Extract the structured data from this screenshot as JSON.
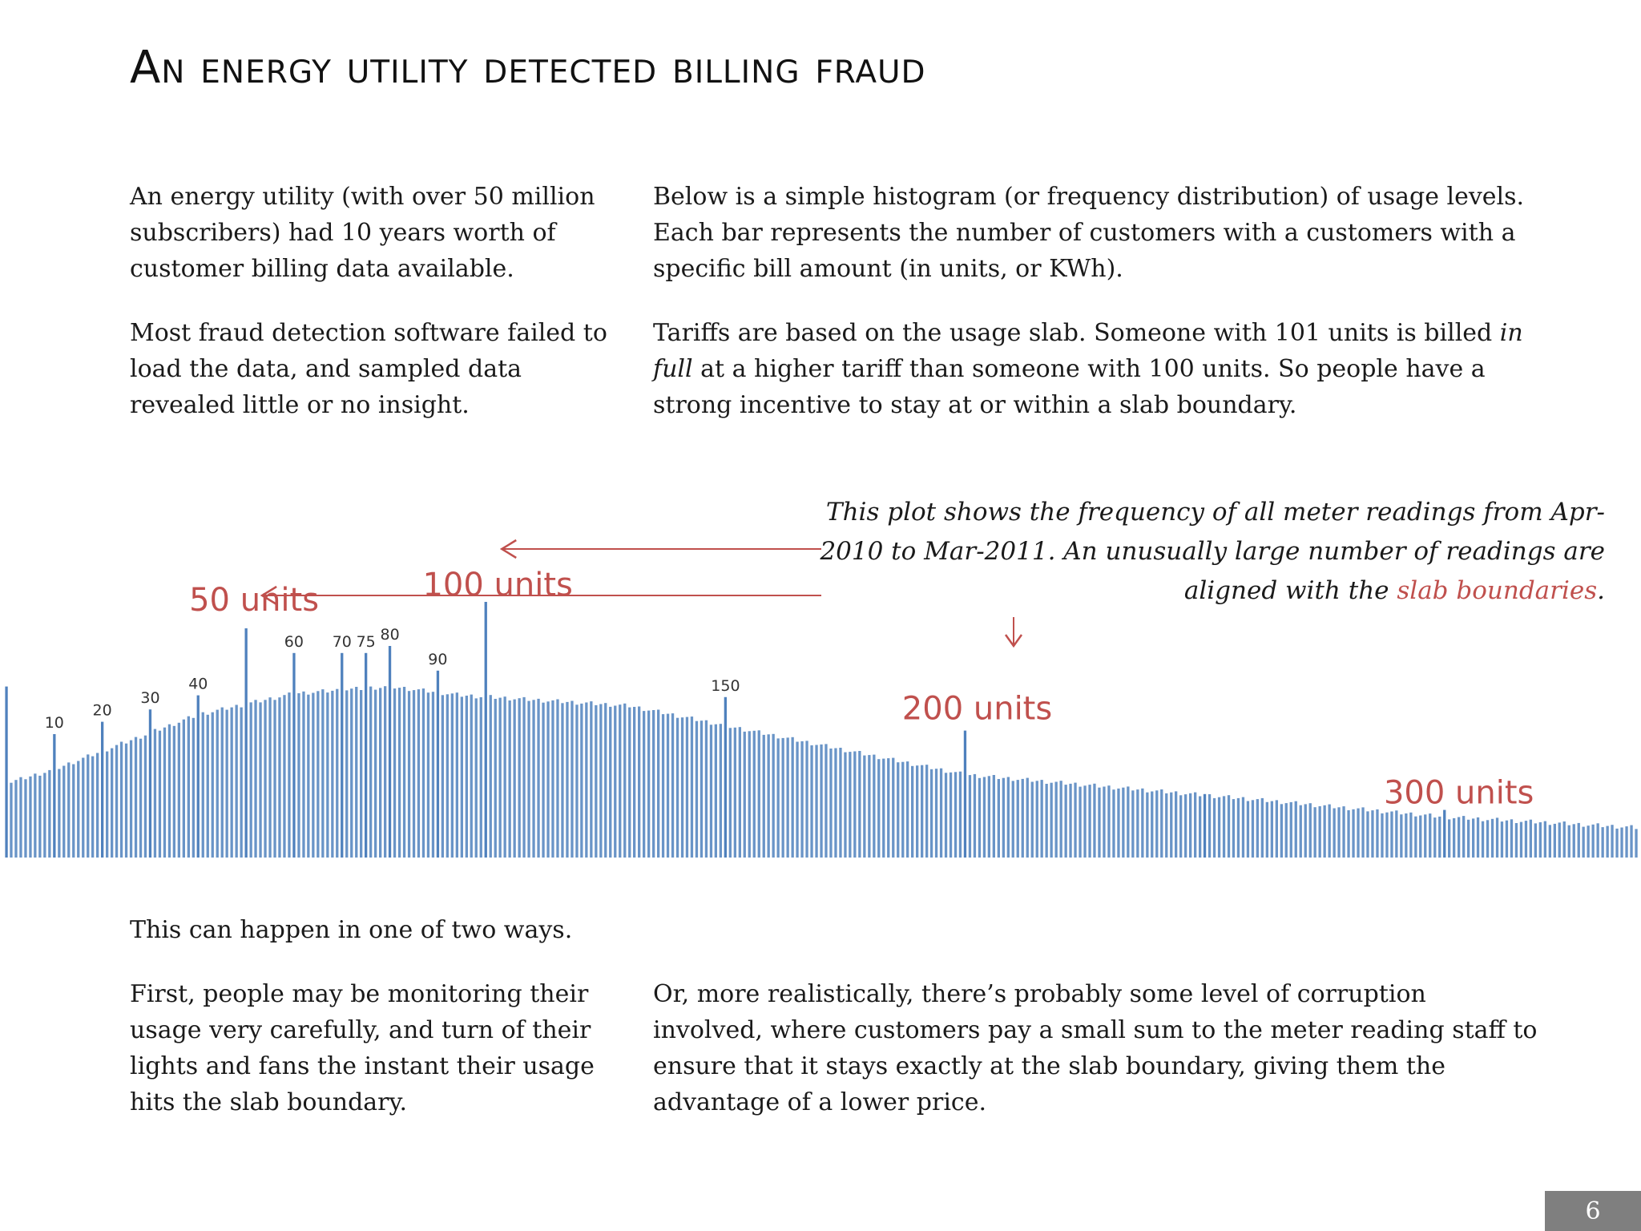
{
  "title": "An energy utility detected billing fraud",
  "intro": {
    "left_p1": "An energy utility (with over 50 million subscribers) had 10 years worth of customer billing data available.",
    "left_p2": "Most fraud detection software failed to load the data, and sampled data revealed little or no insight.",
    "right_p1": "Below is a simple histogram (or frequency distribution) of usage levels. Each bar represents the number of customers with a customers with a specific bill amount (in units, or KWh).",
    "right_p2_a": "Tariffs are based on the usage slab. Someone with 101 units is billed ",
    "right_p2_em": "in full",
    "right_p2_b": " at a higher tariff than someone with 100 units. So people have a strong incentive to stay at or within a slab boundary."
  },
  "caption": {
    "text_a": "This plot shows the frequency of all meter readings from Apr-2010 to Mar-2011. An unusually large number of readings are aligned with the ",
    "highlight": "slab boundaries",
    "text_b": "."
  },
  "outro": {
    "lead": "This can happen in one of two ways.",
    "left": "First, people may be monitoring their usage very carefully, and turn of their lights and fans the instant their usage hits the slab boundary.",
    "right": "Or, more realistically, there’s probably some level of corruption involved, where customers pay a small sum to the meter reading staff to ensure that it stays exactly at the slab boundary, giving them the advantage of a lower price."
  },
  "page_number": "6",
  "colors": {
    "bar": "#4f81bd",
    "annotation": "#c0504d"
  },
  "chart_data": {
    "type": "bar",
    "xlabel": "",
    "ylabel": "",
    "x_range": [
      0,
      340
    ],
    "note": "Histogram of meter readings; heights in relative frequency, estimated from image",
    "baseline_shape": [
      [
        0,
        0.42
      ],
      [
        10,
        0.5
      ],
      [
        40,
        0.81
      ],
      [
        60,
        0.93
      ],
      [
        80,
        0.97
      ],
      [
        95,
        0.92
      ],
      [
        130,
        0.86
      ],
      [
        200,
        0.47
      ],
      [
        260,
        0.33
      ],
      [
        300,
        0.23
      ],
      [
        340,
        0.17
      ]
    ],
    "spikes": [
      {
        "x": 0,
        "value": 0.97
      },
      {
        "x": 10,
        "value": 0.7
      },
      {
        "x": 20,
        "value": 0.77
      },
      {
        "x": 30,
        "value": 0.84
      },
      {
        "x": 40,
        "value": 0.92
      },
      {
        "x": 50,
        "value": 1.3
      },
      {
        "x": 60,
        "value": 1.16
      },
      {
        "x": 70,
        "value": 1.16
      },
      {
        "x": 75,
        "value": 1.16
      },
      {
        "x": 80,
        "value": 1.2
      },
      {
        "x": 90,
        "value": 1.06
      },
      {
        "x": 100,
        "value": 1.45
      },
      {
        "x": 150,
        "value": 0.91
      },
      {
        "x": 200,
        "value": 0.72
      },
      {
        "x": 250,
        "value": 0.36
      },
      {
        "x": 300,
        "value": 0.27
      }
    ],
    "tick_labels": [
      {
        "x": 10,
        "label": "10"
      },
      {
        "x": 20,
        "label": "20"
      },
      {
        "x": 30,
        "label": "30"
      },
      {
        "x": 40,
        "label": "40"
      },
      {
        "x": 60,
        "label": "60"
      },
      {
        "x": 70,
        "label": "70"
      },
      {
        "x": 75,
        "label": "75"
      },
      {
        "x": 80,
        "label": "80"
      },
      {
        "x": 90,
        "label": "90"
      },
      {
        "x": 150,
        "label": "150"
      }
    ],
    "annotations": [
      {
        "x": 50,
        "label": "50 units"
      },
      {
        "x": 100,
        "label": "100 units"
      },
      {
        "x": 200,
        "label": "200 units"
      },
      {
        "x": 300,
        "label": "300 units"
      }
    ]
  }
}
